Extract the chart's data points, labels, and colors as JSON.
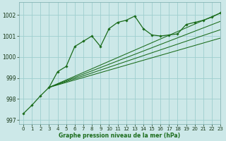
{
  "title": "Graphe pression niveau de la mer (hPa)",
  "background_color": "#cce8e8",
  "grid_color": "#9ecece",
  "line_color": "#1a6b1a",
  "xlim": [
    -0.5,
    23
  ],
  "ylim": [
    996.8,
    1002.6
  ],
  "yticks": [
    997,
    998,
    999,
    1000,
    1001,
    1002
  ],
  "xticks": [
    0,
    1,
    2,
    3,
    4,
    5,
    6,
    7,
    8,
    9,
    10,
    11,
    12,
    13,
    14,
    15,
    16,
    17,
    18,
    19,
    20,
    21,
    22,
    23
  ],
  "main_series_x": [
    0,
    1,
    2,
    3,
    4,
    5,
    6,
    7,
    8,
    9,
    10,
    11,
    12,
    13,
    14,
    15,
    16,
    17,
    18,
    19,
    20,
    21,
    22,
    23
  ],
  "main_series_y": [
    997.3,
    997.7,
    998.15,
    998.55,
    999.3,
    999.55,
    1000.5,
    1000.75,
    1001.0,
    1000.5,
    1001.35,
    1001.65,
    1001.75,
    1001.95,
    1001.35,
    1001.05,
    1001.0,
    1001.05,
    1001.1,
    1001.55,
    1001.65,
    1001.75,
    1001.9,
    1002.1
  ],
  "diag_lines": [
    {
      "x0": 3,
      "y0": 998.55,
      "x1": 23,
      "y1": 1002.1
    },
    {
      "x0": 3,
      "y0": 998.55,
      "x1": 23,
      "y1": 1001.7
    },
    {
      "x0": 3,
      "y0": 998.55,
      "x1": 23,
      "y1": 1001.3
    },
    {
      "x0": 3,
      "y0": 998.55,
      "x1": 23,
      "y1": 1000.9
    }
  ]
}
